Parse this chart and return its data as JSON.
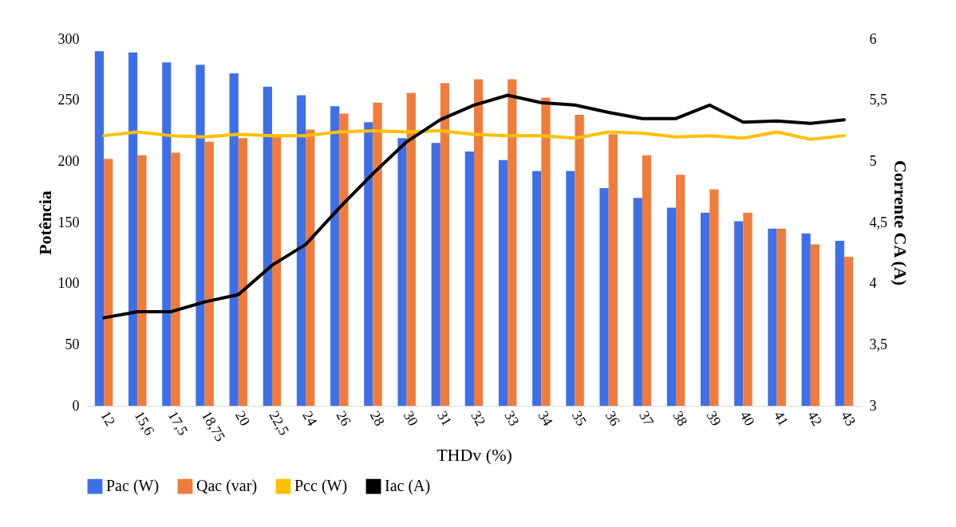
{
  "chart_data": {
    "type": "bar",
    "xlabel": "THDv (%)",
    "ylabel": "Potência",
    "y2label": "Corrente CA (A)",
    "categories": [
      "12",
      "15,6",
      "17,5",
      "18,75",
      "20",
      "22,5",
      "24",
      "26",
      "28",
      "30",
      "31",
      "32",
      "33",
      "34",
      "35",
      "36",
      "37",
      "38",
      "39",
      "40",
      "41",
      "42",
      "43"
    ],
    "series": [
      {
        "name": "Pac (W)",
        "color": "#3f6fe6",
        "values": [
          290,
          289,
          281,
          279,
          272,
          261,
          254,
          245,
          232,
          219,
          215,
          208,
          201,
          192,
          192,
          178,
          170,
          162,
          158,
          151,
          145,
          141,
          135
        ]
      },
      {
        "name": "Qac (var)",
        "color": "#f07c3c",
        "values": [
          202,
          205,
          207,
          216,
          219,
          220,
          226,
          239,
          248,
          256,
          264,
          267,
          267,
          252,
          238,
          222,
          205,
          189,
          177,
          158,
          145,
          132,
          122
        ]
      },
      {
        "name": "Pcc (W)",
        "type": "line",
        "color": "#ffc000",
        "values": [
          221,
          224,
          221,
          220,
          222,
          221,
          221,
          224,
          225,
          224,
          225,
          222,
          221,
          221,
          219,
          224,
          223,
          220,
          221,
          219,
          224,
          218,
          221
        ]
      },
      {
        "name": "Iac (A)",
        "type": "line",
        "axis": "y2",
        "color": "#000000",
        "values": [
          3.72,
          3.77,
          3.77,
          3.85,
          3.91,
          4.15,
          4.32,
          4.62,
          4.9,
          5.16,
          5.34,
          5.46,
          5.54,
          5.48,
          5.46,
          5.4,
          5.35,
          5.35,
          5.46,
          5.32,
          5.33,
          5.31,
          5.34
        ]
      }
    ],
    "ylim": [
      0,
      300
    ],
    "yticks": [
      0,
      50,
      100,
      150,
      200,
      250,
      300
    ],
    "y2lim": [
      3,
      6
    ],
    "y2ticks": [
      3,
      {
        "value": 3.5,
        "label": "3,5"
      },
      4,
      {
        "value": 4.5,
        "label": "4,5"
      },
      5,
      {
        "value": 5.5,
        "label": "5,5"
      },
      6
    ],
    "legend": "bottom",
    "grid": false
  }
}
